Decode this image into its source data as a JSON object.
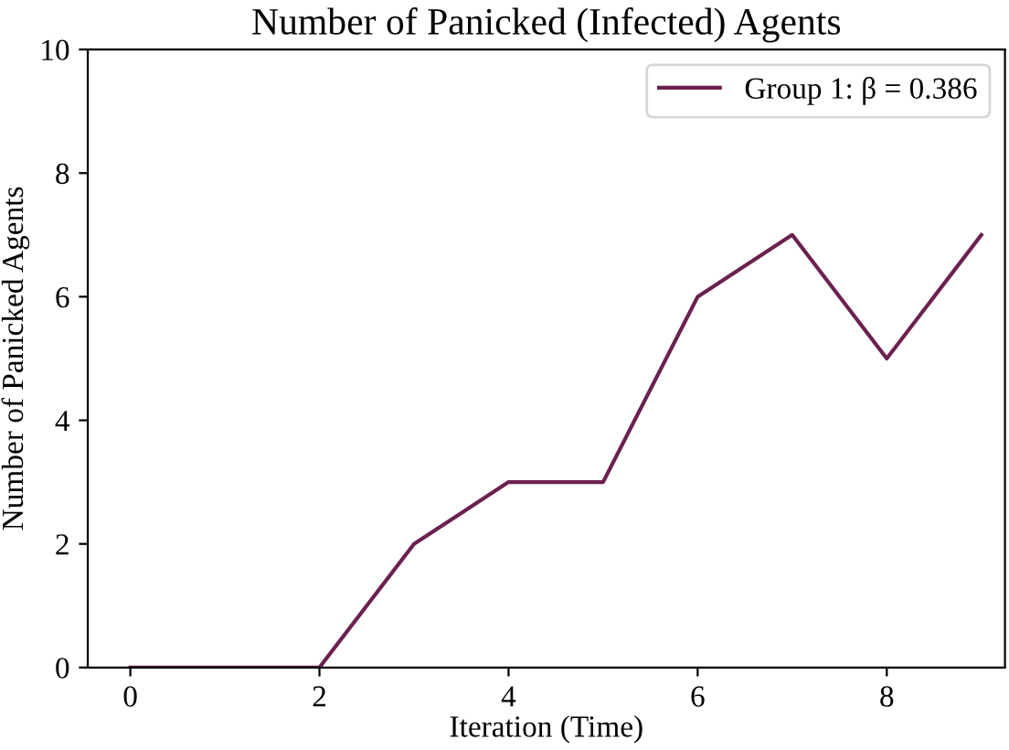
{
  "chart_data": {
    "type": "line",
    "title": "Number of Panicked (Infected) Agents",
    "xlabel": "Iteration (Time)",
    "ylabel": "Number of Panicked Agents",
    "x": [
      0,
      1,
      2,
      3,
      4,
      5,
      6,
      7,
      8,
      9
    ],
    "series": [
      {
        "name": "Group 1: β = 0.386",
        "color": "#6b2150",
        "values": [
          0,
          0,
          0,
          2,
          3,
          3,
          6,
          7,
          5,
          7
        ]
      }
    ],
    "xlim": [
      -0.45,
      9.25
    ],
    "ylim": [
      0,
      10
    ],
    "xticks": [
      0,
      2,
      4,
      6,
      8
    ],
    "yticks": [
      0,
      2,
      4,
      6,
      8,
      10
    ],
    "grid": false,
    "legend": "top right",
    "marker": "none",
    "line_style": "solid"
  }
}
